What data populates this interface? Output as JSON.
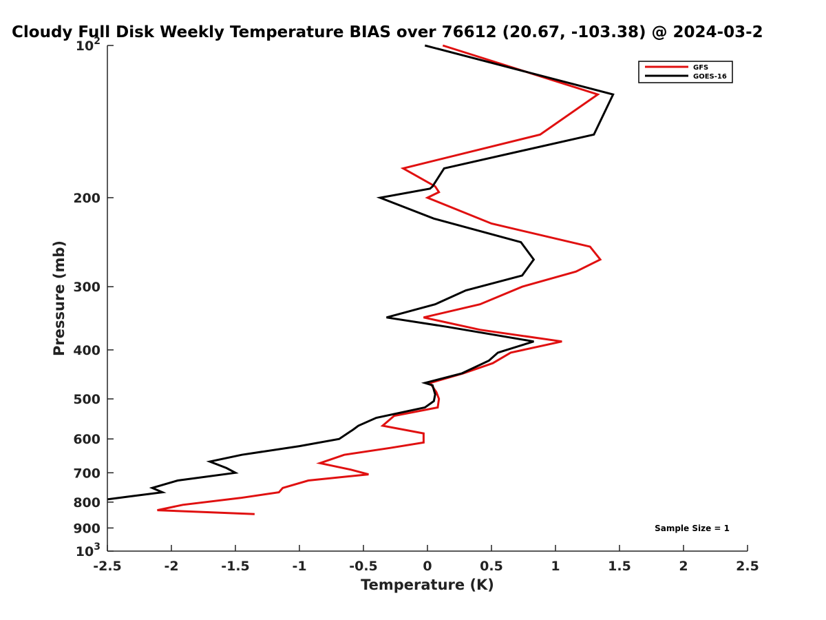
{
  "chart_data": {
    "type": "line",
    "title": "Cloudy Full Disk Weekly Temperature BIAS over 76612 (20.67, -103.38) @ 2024-03-2",
    "xlabel": "Temperature (K)",
    "ylabel": "Pressure (mb)",
    "xlim": [
      -2.5,
      2.5
    ],
    "ylim": [
      100,
      1000
    ],
    "y_scale": "log",
    "y_reversed": true,
    "x_ticks": [
      -2.5,
      -2,
      -1.5,
      -1,
      -0.5,
      0,
      0.5,
      1,
      1.5,
      2,
      2.5
    ],
    "x_tick_labels": [
      "-2.5",
      "-2",
      "-1.5",
      "-1",
      "-0.5",
      "0",
      "0.5",
      "1",
      "1.5",
      "2",
      "2.5"
    ],
    "y_ticks": [
      {
        "value": 100,
        "base": "10",
        "exp": "2"
      },
      {
        "value": 200,
        "label": "200"
      },
      {
        "value": 300,
        "label": "300"
      },
      {
        "value": 400,
        "label": "400"
      },
      {
        "value": 500,
        "label": "500"
      },
      {
        "value": 600,
        "label": "600"
      },
      {
        "value": 700,
        "label": "700"
      },
      {
        "value": 800,
        "label": "800"
      },
      {
        "value": 900,
        "label": "900"
      },
      {
        "value": 1000,
        "base": "10",
        "exp": "3"
      }
    ],
    "grid": false,
    "legend_position": "top-right",
    "annotation": "Sample Size = 1",
    "series": [
      {
        "name": "GFS",
        "color": "#e01010",
        "points": [
          {
            "x": 0.12,
            "y": 100
          },
          {
            "x": 1.33,
            "y": 125
          },
          {
            "x": 0.88,
            "y": 150
          },
          {
            "x": -0.19,
            "y": 175
          },
          {
            "x": 0.06,
            "y": 190
          },
          {
            "x": 0.09,
            "y": 195
          },
          {
            "x": 0.0,
            "y": 200
          },
          {
            "x": 0.5,
            "y": 225
          },
          {
            "x": 1.27,
            "y": 250
          },
          {
            "x": 1.35,
            "y": 265
          },
          {
            "x": 1.16,
            "y": 280
          },
          {
            "x": 0.74,
            "y": 300
          },
          {
            "x": 0.41,
            "y": 325
          },
          {
            "x": -0.03,
            "y": 345
          },
          {
            "x": 0.41,
            "y": 365
          },
          {
            "x": 1.05,
            "y": 385
          },
          {
            "x": 0.65,
            "y": 405
          },
          {
            "x": 0.51,
            "y": 425
          },
          {
            "x": 0.28,
            "y": 445
          },
          {
            "x": 0.02,
            "y": 465
          },
          {
            "x": 0.07,
            "y": 485
          },
          {
            "x": 0.09,
            "y": 500
          },
          {
            "x": 0.08,
            "y": 520
          },
          {
            "x": -0.26,
            "y": 540
          },
          {
            "x": -0.35,
            "y": 565
          },
          {
            "x": -0.03,
            "y": 585
          },
          {
            "x": -0.03,
            "y": 610
          },
          {
            "x": -0.29,
            "y": 625
          },
          {
            "x": -0.65,
            "y": 645
          },
          {
            "x": -0.84,
            "y": 670
          },
          {
            "x": -0.6,
            "y": 690
          },
          {
            "x": -0.46,
            "y": 705
          },
          {
            "x": -0.93,
            "y": 725
          },
          {
            "x": -1.13,
            "y": 750
          },
          {
            "x": -1.16,
            "y": 765
          },
          {
            "x": -1.46,
            "y": 785
          },
          {
            "x": -1.91,
            "y": 810
          },
          {
            "x": -2.11,
            "y": 830
          },
          {
            "x": -1.35,
            "y": 845
          }
        ]
      },
      {
        "name": "GOES-16",
        "color": "#000000",
        "points": [
          {
            "x": -0.02,
            "y": 100
          },
          {
            "x": 1.45,
            "y": 125
          },
          {
            "x": 1.3,
            "y": 150
          },
          {
            "x": 0.13,
            "y": 175
          },
          {
            "x": 0.04,
            "y": 190
          },
          {
            "x": 0.02,
            "y": 192
          },
          {
            "x": -0.37,
            "y": 200
          },
          {
            "x": 0.05,
            "y": 220
          },
          {
            "x": 0.73,
            "y": 245
          },
          {
            "x": 0.83,
            "y": 265
          },
          {
            "x": 0.74,
            "y": 285
          },
          {
            "x": 0.3,
            "y": 305
          },
          {
            "x": 0.06,
            "y": 325
          },
          {
            "x": -0.32,
            "y": 345
          },
          {
            "x": 0.15,
            "y": 360
          },
          {
            "x": 0.83,
            "y": 385
          },
          {
            "x": 0.55,
            "y": 405
          },
          {
            "x": 0.48,
            "y": 420
          },
          {
            "x": 0.27,
            "y": 445
          },
          {
            "x": -0.02,
            "y": 465
          },
          {
            "x": 0.04,
            "y": 470
          },
          {
            "x": 0.06,
            "y": 490
          },
          {
            "x": 0.05,
            "y": 505
          },
          {
            "x": -0.02,
            "y": 520
          },
          {
            "x": -0.4,
            "y": 545
          },
          {
            "x": -0.54,
            "y": 565
          },
          {
            "x": -0.58,
            "y": 575
          },
          {
            "x": -0.69,
            "y": 600
          },
          {
            "x": -1.0,
            "y": 620
          },
          {
            "x": -1.45,
            "y": 645
          },
          {
            "x": -1.7,
            "y": 665
          },
          {
            "x": -1.57,
            "y": 685
          },
          {
            "x": -1.5,
            "y": 700
          },
          {
            "x": -1.95,
            "y": 725
          },
          {
            "x": -2.15,
            "y": 750
          },
          {
            "x": -2.07,
            "y": 765
          },
          {
            "x": -2.33,
            "y": 780
          },
          {
            "x": -2.5,
            "y": 790
          }
        ]
      }
    ]
  }
}
